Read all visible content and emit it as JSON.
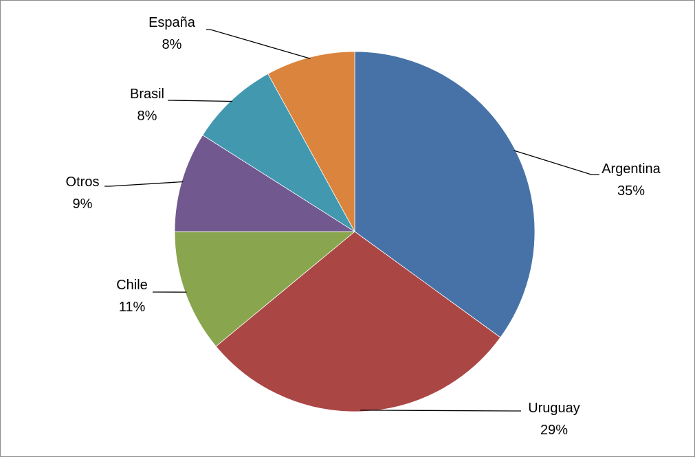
{
  "chart_data": {
    "type": "pie",
    "title": "",
    "start_angle_deg": 0,
    "direction": "clockwise",
    "slices": [
      {
        "label": "Argentina",
        "value": 35,
        "value_label": "35%",
        "color": "#4672A7"
      },
      {
        "label": "Uruguay",
        "value": 29,
        "value_label": "29%",
        "color": "#AA4644"
      },
      {
        "label": "Chile",
        "value": 11,
        "value_label": "11%",
        "color": "#89A54E"
      },
      {
        "label": "Otros",
        "value": 9,
        "value_label": "9%",
        "color": "#71588F"
      },
      {
        "label": "Brasil",
        "value": 8,
        "value_label": "8%",
        "color": "#4198AF"
      },
      {
        "label": "España",
        "value": 8,
        "value_label": "8%",
        "color": "#DB843D"
      }
    ],
    "legend": "none",
    "data_labels": "outside-with-leader-lines"
  }
}
